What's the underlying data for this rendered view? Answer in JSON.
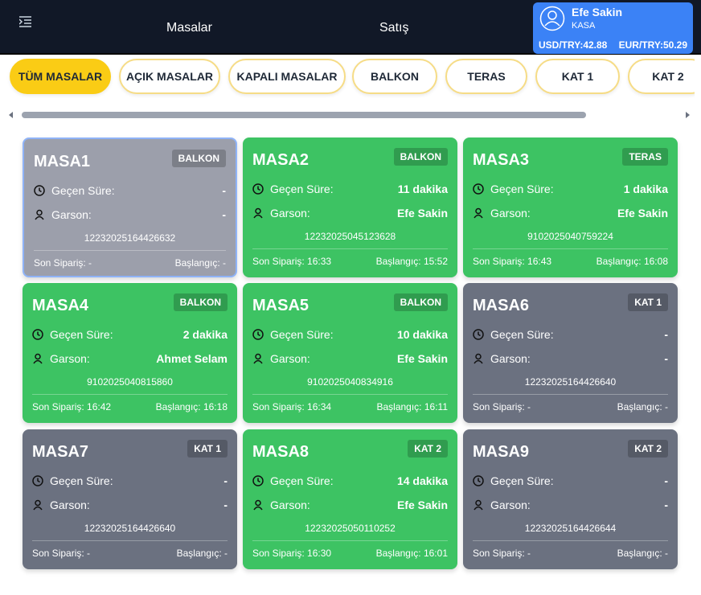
{
  "nav": {
    "items": [
      "Masalar",
      "Satış"
    ]
  },
  "user": {
    "name": "Efe Sakin",
    "role": "KASA",
    "rates": [
      "USD/TRY:42.88",
      "EUR/TRY:50.29"
    ]
  },
  "filters": {
    "items": [
      "TÜM MASALAR",
      "AÇIK MASALAR",
      "KAPALI MASALAR",
      "BALKON",
      "TERAS",
      "KAT 1",
      "KAT 2"
    ],
    "active": 0
  },
  "labels": {
    "elapsed": "Geçen Süre:",
    "waiter": "Garson:"
  },
  "tables": [
    {
      "name": "MASA1",
      "area": "BALKON",
      "elapsed": "-",
      "waiter": "-",
      "code": "12232025164426632",
      "last_order": "Son Sipariş: -",
      "start": "Başlangıç: -",
      "color": "#9c9fab",
      "selected": true
    },
    {
      "name": "MASA2",
      "area": "BALKON",
      "elapsed": "11 dakika",
      "waiter": "Efe Sakin",
      "code": "12232025045123628",
      "last_order": "Son Sipariş: 16:33",
      "start": "Başlangıç: 15:52",
      "color": "#3dc363",
      "selected": false
    },
    {
      "name": "MASA3",
      "area": "TERAS",
      "elapsed": "1 dakika",
      "waiter": "Efe Sakin",
      "code": "9102025040759224",
      "last_order": "Son Sipariş: 16:43",
      "start": "Başlangıç: 16:08",
      "color": "#3dc363",
      "selected": false
    },
    {
      "name": "MASA4",
      "area": "BALKON",
      "elapsed": "2 dakika",
      "waiter": "Ahmet Selam",
      "code": "9102025040815860",
      "last_order": "Son Sipariş: 16:42",
      "start": "Başlangıç: 16:18",
      "color": "#3dc363",
      "selected": false
    },
    {
      "name": "MASA5",
      "area": "BALKON",
      "elapsed": "10 dakika",
      "waiter": "Efe Sakin",
      "code": "9102025040834916",
      "last_order": "Son Sipariş: 16:34",
      "start": "Başlangıç: 16:11",
      "color": "#3dc363",
      "selected": false
    },
    {
      "name": "MASA6",
      "area": "KAT 1",
      "elapsed": "-",
      "waiter": "-",
      "code": "12232025164426640",
      "last_order": "Son Sipariş: -",
      "start": "Başlangıç: -",
      "color": "#6b7180",
      "selected": false
    },
    {
      "name": "MASA7",
      "area": "KAT 1",
      "elapsed": "-",
      "waiter": "-",
      "code": "12232025164426640",
      "last_order": "Son Sipariş: -",
      "start": "Başlangıç: -",
      "color": "#6b7180",
      "selected": false
    },
    {
      "name": "MASA8",
      "area": "KAT 2",
      "elapsed": "14 dakika",
      "waiter": "Efe Sakin",
      "code": "12232025050110252",
      "last_order": "Son Sipariş: 16:30",
      "start": "Başlangıç: 16:01",
      "color": "#3dc363",
      "selected": false
    },
    {
      "name": "MASA9",
      "area": "KAT 2",
      "elapsed": "-",
      "waiter": "-",
      "code": "12232025164426644",
      "last_order": "Son Sipariş: -",
      "start": "Başlangıç: -",
      "color": "#6b7180",
      "selected": false
    }
  ]
}
